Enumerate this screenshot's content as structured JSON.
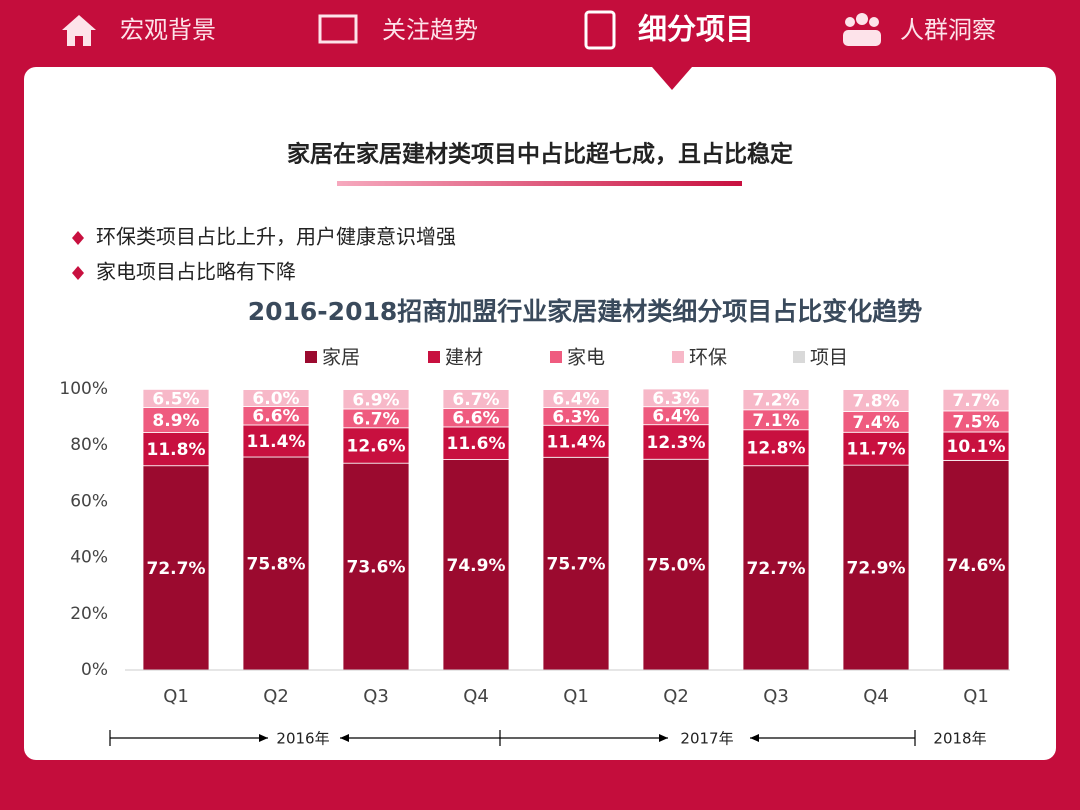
{
  "nav": {
    "items": [
      "宏观背景",
      "关注趋势",
      "细分项目",
      "人群洞察"
    ]
  },
  "heading": "家居在家居建材类项目中占比超七成，且占比稳定",
  "bullets": [
    "环保类项目占比上升，用户健康意识增强",
    "家电项目占比略有下降"
  ],
  "chart_data": {
    "type": "stacked_bar",
    "title": "2016-2018招商加盟行业家居建材类细分项目占比变化趋势",
    "categories": [
      "Q1",
      "Q2",
      "Q3",
      "Q4",
      "Q1",
      "Q2",
      "Q3",
      "Q4",
      "Q1"
    ],
    "year_labels": [
      "2016年",
      "2017年",
      "2018年"
    ],
    "series": [
      {
        "name": "家居",
        "color": "#9b0a2f",
        "values": [
          72.7,
          75.8,
          73.6,
          74.9,
          75.7,
          75.0,
          72.7,
          72.9,
          74.6
        ],
        "value_labels": [
          "72.7%",
          "75.8%",
          "73.6%",
          "74.9%",
          "75.7%",
          "75.0%",
          "72.7%",
          "72.9%",
          "74.6%"
        ]
      },
      {
        "name": "建材",
        "color": "#c8103f",
        "values": [
          11.8,
          11.4,
          12.6,
          11.6,
          11.4,
          12.3,
          12.8,
          11.7,
          10.1
        ],
        "value_labels": [
          "11.8%",
          "11.4%",
          "12.6%",
          "11.6%",
          "11.4%",
          "12.3%",
          "12.8%",
          "11.7%",
          "10.1%"
        ]
      },
      {
        "name": "家电",
        "color": "#ef5b7f",
        "values": [
          8.9,
          6.6,
          6.7,
          6.6,
          6.3,
          6.4,
          7.1,
          7.4,
          7.5
        ],
        "value_labels": [
          "8.9%",
          "6.6%",
          "6.7%",
          "6.6%",
          "6.3%",
          "6.4%",
          "7.1%",
          "7.4%",
          "7.5%"
        ]
      },
      {
        "name": "环保",
        "color": "#f7b8c8",
        "values": [
          6.5,
          6.0,
          6.9,
          6.7,
          6.4,
          6.3,
          7.2,
          7.8,
          7.7
        ],
        "value_labels": [
          "6.5%",
          "6.0%",
          "6.9%",
          "6.7%",
          "6.4%",
          "6.3%",
          "7.2%",
          "7.8%",
          "7.7%"
        ]
      },
      {
        "name": "项目",
        "color": "#d9d9d9",
        "values": [
          0.1,
          0.2,
          0.2,
          0.2,
          0.2,
          0,
          0.2,
          0.2,
          0.1
        ]
      }
    ],
    "ylim": [
      0,
      100
    ],
    "yticks": [
      {
        "value": 0,
        "label": "0%"
      },
      {
        "value": 20,
        "label": "20%"
      },
      {
        "value": 40,
        "label": "40%"
      },
      {
        "value": 60,
        "label": "60%"
      },
      {
        "value": 80,
        "label": "80%"
      },
      {
        "value": 100,
        "label": "100%"
      }
    ],
    "grid": false
  }
}
